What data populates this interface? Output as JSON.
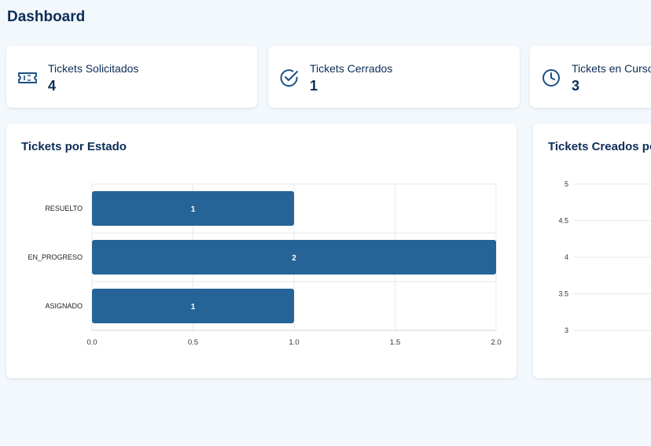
{
  "page": {
    "title": "Dashboard"
  },
  "stats": [
    {
      "label": "Tickets Solicitados",
      "value": "4",
      "icon": "ticket-icon"
    },
    {
      "label": "Tickets Cerrados",
      "value": "1",
      "icon": "check-circle-icon"
    },
    {
      "label": "Tickets en Curso",
      "value": "3",
      "icon": "clock-icon"
    }
  ],
  "colors": {
    "bar": "#266497",
    "text": "#0c2d57",
    "grid": "#e4e8ee"
  },
  "panels": {
    "estado_title": "Tickets por Estado",
    "creados_title": "Tickets Creados por"
  },
  "chart_data": [
    {
      "type": "bar",
      "orientation": "horizontal",
      "title": "Tickets por Estado",
      "categories": [
        "RESUELTO",
        "EN_PROGRESO",
        "ASIGNADO"
      ],
      "values": [
        1,
        2,
        1
      ],
      "xlim": [
        0,
        2
      ],
      "xticks": [
        "0.0",
        "0.5",
        "1.0",
        "1.5",
        "2.0"
      ],
      "data_labels": true,
      "grid": true
    },
    {
      "type": "line",
      "title": "Tickets Creados por",
      "ylim": [
        3,
        5
      ],
      "yticks": [
        "5",
        "4.5",
        "4",
        "3.5",
        "3"
      ],
      "grid": true
    }
  ]
}
